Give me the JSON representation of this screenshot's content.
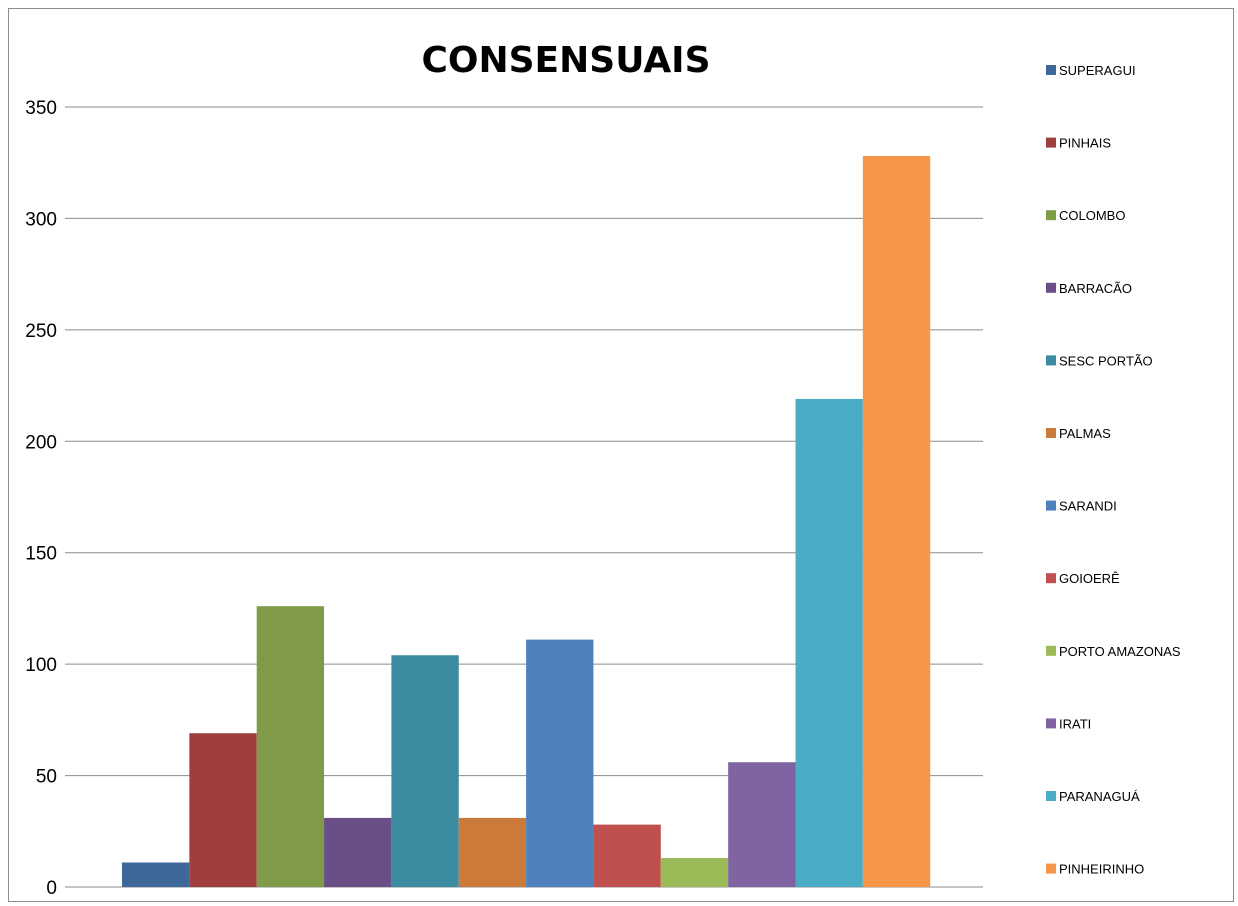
{
  "chart_data": {
    "type": "bar",
    "title": "CONSENSUAIS",
    "xlabel": "",
    "ylabel": "",
    "ylim": [
      0,
      350
    ],
    "yticks": [
      "0",
      "50",
      "100",
      "150",
      "200",
      "250",
      "300",
      "350"
    ],
    "grid": true,
    "legend_position": "right",
    "series": [
      {
        "name": "SUPERAGUI",
        "value": 11,
        "color": "#3f689a"
      },
      {
        "name": "PINHAIS",
        "value": 69,
        "color": "#9e3f3d"
      },
      {
        "name": "COLOMBO",
        "value": 126,
        "color": "#7f9b48"
      },
      {
        "name": "BARRACÃO",
        "value": 31,
        "color": "#6a4f87"
      },
      {
        "name": "SESC PORTÃO",
        "value": 104,
        "color": "#3b8ca1"
      },
      {
        "name": "PALMAS",
        "value": 31,
        "color": "#cb7a3a"
      },
      {
        "name": "SARANDI",
        "value": 111,
        "color": "#4f81bd"
      },
      {
        "name": "GOIOERÊ",
        "value": 28,
        "color": "#c0504d"
      },
      {
        "name": "PORTO AMAZONAS",
        "value": 13,
        "color": "#9bbb59"
      },
      {
        "name": "IRATI",
        "value": 56,
        "color": "#8064a2"
      },
      {
        "name": "PARANAGUÁ",
        "value": 219,
        "color": "#4bacc6"
      },
      {
        "name": "PINHEIRINHO",
        "value": 328,
        "color": "#f79646"
      }
    ]
  }
}
